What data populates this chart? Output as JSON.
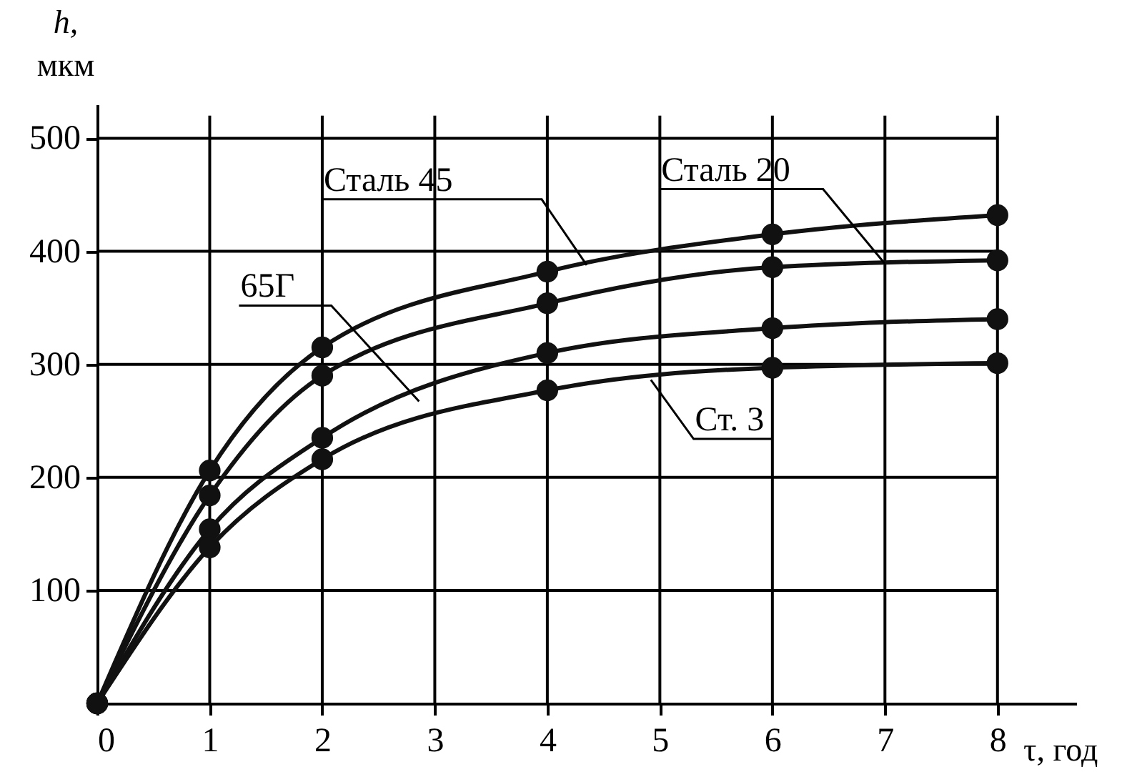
{
  "chart_data": {
    "type": "line",
    "xlabel": "τ, год",
    "ylabel": "h,\nмкм",
    "x": [
      0,
      1,
      2,
      4,
      6,
      8
    ],
    "series": [
      {
        "name": "Сталь 45",
        "color": "#111111",
        "values": [
          0,
          206,
          315,
          382,
          415,
          432
        ]
      },
      {
        "name": "Сталь 20",
        "color": "#111111",
        "values": [
          0,
          184,
          290,
          354,
          386,
          392
        ]
      },
      {
        "name": "65Г",
        "color": "#111111",
        "values": [
          0,
          154,
          235,
          310,
          332,
          340
        ]
      },
      {
        "name": "Ст. 3",
        "color": "#111111",
        "values": [
          0,
          138,
          216,
          277,
          297,
          301
        ]
      }
    ],
    "xlim": [
      0,
      8.7
    ],
    "ylim": [
      0,
      530
    ],
    "xticks": [
      0,
      1,
      2,
      3,
      4,
      5,
      6,
      7,
      8
    ],
    "yticks": [
      100,
      200,
      300,
      400,
      500
    ],
    "grid": true,
    "marker": "circle",
    "line_style": "solid"
  }
}
